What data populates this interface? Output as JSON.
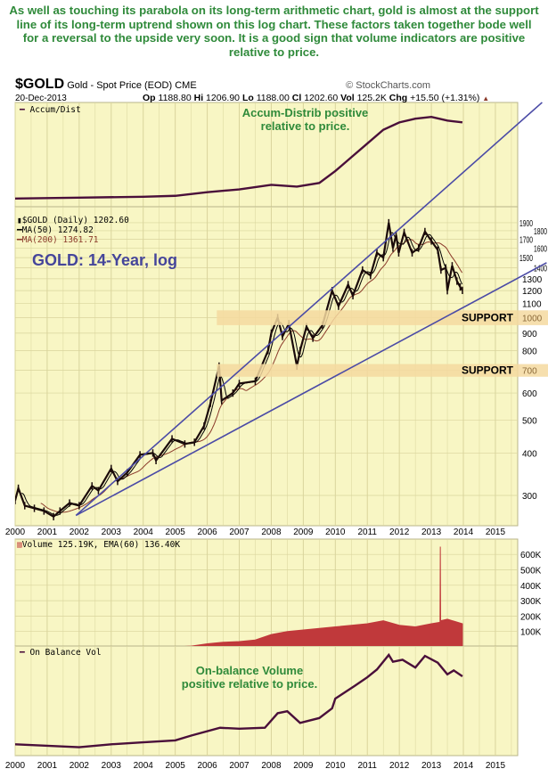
{
  "note": "As well as touching its parabola on its long-term arithmetic chart, gold is almost at the support line of its long-term uptrend shown on this log chart. These factors taken together bode well for a reversal to the upside very soon. It is a good sign that volume indicators are positive relative to price.",
  "header": {
    "symbol": "$GOLD",
    "name": "Gold - Spot Price (EOD) CME",
    "copyright": "© StockCharts.com",
    "date": "20-Dec-2013",
    "op_label": "Op",
    "op": "1188.80",
    "hi_label": "Hi",
    "hi": "1206.90",
    "lo_label": "Lo",
    "lo": "1188.00",
    "cl_label": "Cl",
    "cl": "1202.60",
    "vol_label": "Vol",
    "vol": "125.2K",
    "chg_label": "Chg",
    "chg": "+15.50 (+1.31%)",
    "chg_icon": "up-triangle-icon"
  },
  "colors": {
    "title_green": "#2f8a3a",
    "panel_bg": "#f8f6c4",
    "grid": "#d9d49c",
    "trendline": "#4b4ba6",
    "price": "#1a0a0a",
    "ma50": "#000000",
    "ma200": "#8b3a2a",
    "volume": "#c0393b",
    "indicator": "#4a0f3a",
    "support": "#f5d9a0"
  },
  "chart_data": [
    {
      "type": "line",
      "panel": "accum-dist",
      "legend": "Accum/Dist",
      "annotation": "Accum-Distrib positive relative to price.",
      "x": [
        2000,
        2002,
        2004,
        2005,
        2006,
        2007,
        2008,
        2008.8,
        2009.5,
        2010,
        2010.5,
        2011,
        2011.5,
        2012,
        2012.5,
        2013,
        2013.5,
        2013.97
      ],
      "values": [
        5,
        6,
        7,
        8,
        12,
        15,
        20,
        18,
        22,
        35,
        50,
        65,
        80,
        88,
        92,
        94,
        90,
        88
      ]
    },
    {
      "type": "line",
      "panel": "price",
      "scale": "log",
      "title": "GOLD: 14-Year, log",
      "legend": [
        "$GOLD (Daily) 1202.60",
        "MA(50) 1274.82",
        "MA(200) 1361.71"
      ],
      "yticks": [
        300,
        400,
        500,
        600,
        700,
        800,
        900,
        1000,
        1100,
        1200,
        1300,
        1400,
        1500,
        1600,
        1700,
        1800,
        1900
      ],
      "ylim": [
        270,
        1950
      ],
      "xlim": [
        2000,
        2015.7
      ],
      "xticks": [
        "2000",
        "2001",
        "2002",
        "2003",
        "2004",
        "2005",
        "2006",
        "2007",
        "2008",
        "2009",
        "2010",
        "2011",
        "2012",
        "2013",
        "2014",
        "2015"
      ],
      "series": {
        "x": [
          2000.0,
          2000.1,
          2000.3,
          2000.6,
          2000.9,
          2001.2,
          2001.4,
          2001.7,
          2002.0,
          2002.4,
          2002.6,
          2003.0,
          2003.2,
          2003.5,
          2003.9,
          2004.3,
          2004.4,
          2004.9,
          2005.3,
          2005.6,
          2005.9,
          2006.1,
          2006.37,
          2006.45,
          2006.8,
          2007.0,
          2007.5,
          2007.9,
          2008.0,
          2008.2,
          2008.35,
          2008.55,
          2008.8,
          2008.9,
          2009.1,
          2009.3,
          2009.6,
          2009.9,
          2010.1,
          2010.4,
          2010.55,
          2010.85,
          2011.1,
          2011.3,
          2011.5,
          2011.67,
          2011.8,
          2011.9,
          2011.98,
          2012.15,
          2012.4,
          2012.6,
          2012.8,
          2013.0,
          2013.2,
          2013.3,
          2013.45,
          2013.5,
          2013.65,
          2013.8,
          2013.9,
          2013.97
        ],
        "price": [
          290,
          315,
          280,
          275,
          270,
          260,
          270,
          285,
          280,
          320,
          310,
          360,
          330,
          350,
          395,
          400,
          380,
          440,
          425,
          430,
          480,
          560,
          720,
          570,
          600,
          640,
          650,
          800,
          900,
          1000,
          880,
          960,
          720,
          800,
          940,
          870,
          950,
          1200,
          1080,
          1250,
          1160,
          1380,
          1330,
          1550,
          1500,
          1900,
          1600,
          1750,
          1550,
          1780,
          1550,
          1600,
          1790,
          1680,
          1580,
          1380,
          1400,
          1200,
          1420,
          1280,
          1230,
          1202.6
        ]
      },
      "trendlines": [
        {
          "from": [
            2001.9,
            262
          ],
          "to": [
            2016.46,
            4290
          ]
        },
        {
          "from": [
            2001.9,
            262
          ],
          "to": [
            2016.6,
            1450
          ]
        }
      ],
      "support_bands": [
        {
          "label": "SUPPORT",
          "tick": "1000",
          "range": [
            950,
            1050
          ]
        },
        {
          "label": "SUPPORT",
          "tick": "700",
          "range": [
            670,
            730
          ]
        }
      ]
    },
    {
      "type": "area",
      "panel": "volume",
      "legend": "Volume 125.19K, EMA(60) 136.40K",
      "yticks": [
        "100K",
        "200K",
        "300K",
        "400K",
        "500K",
        "600K"
      ],
      "ylim": [
        0,
        650
      ],
      "x": [
        2000,
        2005,
        2005.5,
        2006,
        2006.5,
        2007,
        2007.5,
        2008,
        2008.5,
        2009,
        2009.5,
        2010,
        2010.5,
        2011,
        2011.5,
        2012,
        2012.5,
        2013,
        2013.27,
        2013.28,
        2013.29,
        2013.5,
        2013.97
      ],
      "values": [
        0,
        0,
        5,
        20,
        30,
        35,
        45,
        80,
        100,
        110,
        120,
        130,
        140,
        150,
        170,
        140,
        130,
        150,
        160,
        650,
        170,
        180,
        150
      ]
    },
    {
      "type": "line",
      "panel": "on-balance-volume",
      "legend": "On Balance Vol",
      "annotation": "On-balance Volume positive relative to price.",
      "x": [
        2000,
        2002,
        2003,
        2004,
        2005,
        2005.5,
        2006.4,
        2007.0,
        2007.8,
        2008.2,
        2008.5,
        2008.9,
        2009.5,
        2009.9,
        2010.0,
        2010.6,
        2011,
        2011.3,
        2011.67,
        2011.8,
        2012.1,
        2012.5,
        2012.8,
        2013.2,
        2013.5,
        2013.7,
        2013.97
      ],
      "values": [
        8,
        5,
        8,
        10,
        12,
        17,
        25,
        24,
        25,
        40,
        42,
        30,
        35,
        45,
        55,
        68,
        77,
        85,
        100,
        93,
        95,
        87,
        99,
        92,
        80,
        84,
        78
      ]
    }
  ]
}
